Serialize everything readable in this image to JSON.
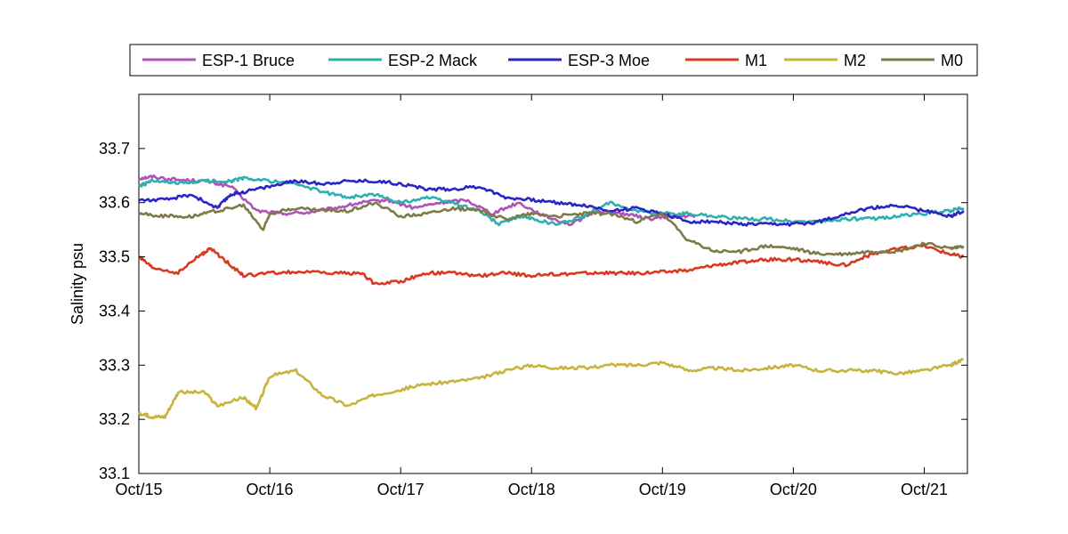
{
  "chart_data": {
    "type": "line",
    "title": "",
    "xlabel": "",
    "ylabel": "Salinity psu",
    "x_tick_labels": [
      "Oct/15",
      "Oct/16",
      "Oct/17",
      "Oct/18",
      "Oct/19",
      "Oct/20",
      "Oct/21"
    ],
    "x_tick_values": [
      15,
      16,
      17,
      18,
      19,
      20,
      21
    ],
    "xlim": [
      15,
      21.33
    ],
    "ylim": [
      33.1,
      33.8
    ],
    "y_tick_labels": [
      "33.1",
      "33.2",
      "33.3",
      "33.4",
      "33.5",
      "33.6",
      "33.7"
    ],
    "y_tick_values": [
      33.1,
      33.2,
      33.3,
      33.4,
      33.5,
      33.6,
      33.7
    ],
    "grid": false,
    "legend_position": "top-outside",
    "series": [
      {
        "name": "ESP-1 Bruce",
        "color": "#b052b8",
        "x": [
          15.0,
          15.1,
          15.3,
          15.5,
          15.7,
          15.9,
          16.1,
          16.3,
          16.5,
          16.7,
          16.9,
          17.1,
          17.3,
          17.5,
          17.7,
          17.9,
          18.1,
          18.3,
          18.5,
          18.7,
          18.9,
          19.1,
          19.25
        ],
        "y": [
          33.645,
          33.648,
          33.642,
          33.64,
          33.63,
          33.585,
          33.58,
          33.582,
          33.59,
          33.6,
          33.605,
          33.59,
          33.6,
          33.605,
          33.58,
          33.6,
          33.575,
          33.56,
          33.585,
          33.58,
          33.57,
          33.575,
          33.575
        ]
      },
      {
        "name": "ESP-2 Mack",
        "color": "#2db0ae",
        "x": [
          15.0,
          15.1,
          15.3,
          15.5,
          15.7,
          15.8,
          16.0,
          16.2,
          16.4,
          16.6,
          16.8,
          17.0,
          17.2,
          17.4,
          17.6,
          17.75,
          17.9,
          18.0,
          18.2,
          18.4,
          18.6,
          18.8,
          19.0,
          19.2,
          19.4,
          19.6,
          19.8,
          20.0,
          20.2,
          20.4,
          20.6,
          20.8,
          21.0,
          21.2,
          21.3
        ],
        "y": [
          33.63,
          33.64,
          33.635,
          33.64,
          33.64,
          33.645,
          33.64,
          33.635,
          33.62,
          33.61,
          33.615,
          33.6,
          33.61,
          33.6,
          33.585,
          33.56,
          33.575,
          33.57,
          33.56,
          33.575,
          33.6,
          33.585,
          33.58,
          33.58,
          33.575,
          33.57,
          33.57,
          33.565,
          33.565,
          33.57,
          33.57,
          33.575,
          33.58,
          33.585,
          33.59
        ]
      },
      {
        "name": "ESP-3 Moe",
        "color": "#2b24c7",
        "x": [
          15.0,
          15.2,
          15.4,
          15.6,
          15.7,
          15.8,
          16.0,
          16.2,
          16.4,
          16.6,
          16.8,
          17.0,
          17.2,
          17.4,
          17.6,
          17.8,
          18.0,
          18.2,
          18.4,
          18.6,
          18.8,
          19.0,
          19.2,
          19.4,
          19.6,
          19.8,
          20.0,
          20.2,
          20.4,
          20.6,
          20.8,
          21.0,
          21.2,
          21.3
        ],
        "y": [
          33.605,
          33.605,
          33.615,
          33.59,
          33.615,
          33.62,
          33.63,
          33.64,
          33.635,
          33.64,
          33.64,
          33.635,
          33.625,
          33.625,
          33.63,
          33.61,
          33.605,
          33.6,
          33.595,
          33.585,
          33.59,
          33.58,
          33.565,
          33.565,
          33.56,
          33.56,
          33.56,
          33.565,
          33.58,
          33.59,
          33.595,
          33.585,
          33.575,
          33.585
        ]
      },
      {
        "name": "M1",
        "color": "#d93a1f",
        "x": [
          15.0,
          15.1,
          15.3,
          15.45,
          15.55,
          15.7,
          15.8,
          16.0,
          16.2,
          16.5,
          16.7,
          16.8,
          17.0,
          17.2,
          17.4,
          17.6,
          17.8,
          18.0,
          18.2,
          18.4,
          18.6,
          18.8,
          19.0,
          19.2,
          19.4,
          19.6,
          19.8,
          20.0,
          20.2,
          20.4,
          20.6,
          20.8,
          21.0,
          21.2,
          21.3
        ],
        "y": [
          33.5,
          33.48,
          33.47,
          33.5,
          33.515,
          33.485,
          33.465,
          33.47,
          33.472,
          33.47,
          33.47,
          33.45,
          33.455,
          33.47,
          33.47,
          33.465,
          33.47,
          33.465,
          33.468,
          33.47,
          33.47,
          33.47,
          33.472,
          33.475,
          33.485,
          33.49,
          33.495,
          33.495,
          33.49,
          33.485,
          33.505,
          33.515,
          33.52,
          33.505,
          33.5
        ]
      },
      {
        "name": "M2",
        "color": "#c8b43c",
        "x": [
          15.0,
          15.1,
          15.2,
          15.3,
          15.5,
          15.6,
          15.8,
          15.9,
          16.0,
          16.2,
          16.4,
          16.6,
          16.8,
          17.0,
          17.2,
          17.4,
          17.6,
          17.8,
          18.0,
          18.2,
          18.4,
          18.6,
          18.8,
          19.0,
          19.2,
          19.4,
          19.6,
          19.8,
          20.0,
          20.2,
          20.4,
          20.6,
          20.8,
          21.0,
          21.2,
          21.3
        ],
        "y": [
          33.21,
          33.205,
          33.205,
          33.25,
          33.25,
          33.225,
          33.24,
          33.22,
          33.28,
          33.29,
          33.245,
          33.225,
          33.245,
          33.255,
          33.265,
          33.27,
          33.275,
          33.29,
          33.3,
          33.295,
          33.295,
          33.3,
          33.3,
          33.305,
          33.29,
          33.295,
          33.29,
          33.295,
          33.3,
          33.29,
          33.29,
          33.29,
          33.285,
          33.29,
          33.3,
          33.31
        ]
      },
      {
        "name": "M0",
        "color": "#7f7a49",
        "x": [
          15.0,
          15.2,
          15.4,
          15.6,
          15.8,
          15.95,
          16.0,
          16.2,
          16.4,
          16.6,
          16.8,
          17.0,
          17.2,
          17.4,
          17.6,
          17.8,
          18.0,
          18.2,
          18.4,
          18.6,
          18.8,
          19.0,
          19.2,
          19.4,
          19.6,
          19.8,
          20.0,
          20.2,
          20.4,
          20.6,
          20.8,
          21.0,
          21.2,
          21.3
        ],
        "y": [
          33.58,
          33.575,
          33.575,
          33.585,
          33.595,
          33.55,
          33.58,
          33.59,
          33.585,
          33.585,
          33.6,
          33.575,
          33.58,
          33.59,
          33.585,
          33.57,
          33.58,
          33.575,
          33.58,
          33.58,
          33.565,
          33.58,
          33.53,
          33.51,
          33.51,
          33.52,
          33.515,
          33.505,
          33.505,
          33.51,
          33.51,
          33.525,
          33.515,
          33.52
        ]
      }
    ]
  }
}
